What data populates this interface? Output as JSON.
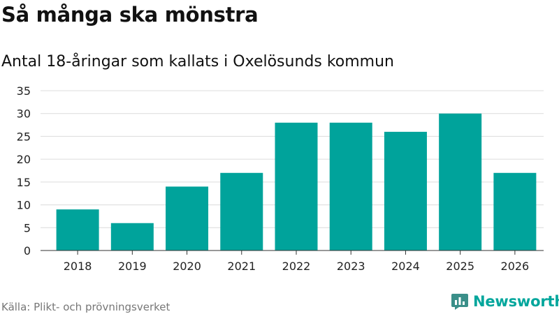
{
  "title": "Så många ska mönstra",
  "subtitle": "Antal 18-åringar som kallats i Oxelösunds kommun",
  "source": "Källa: Plikt- och prövningsverket",
  "brand": {
    "name": "Newsworthy",
    "icon": "newsworthy-logo-icon"
  },
  "colors": {
    "bar": "#00a39b",
    "grid": "#dcdcdc",
    "axis": "#333333",
    "brand": "#00a69c"
  },
  "chart_data": {
    "type": "bar",
    "title": "Så många ska mönstra",
    "subtitle": "Antal 18-åringar som kallats i Oxelösunds kommun",
    "xlabel": "",
    "ylabel": "",
    "categories": [
      "2018",
      "2019",
      "2020",
      "2021",
      "2022",
      "2023",
      "2024",
      "2025",
      "2026"
    ],
    "values": [
      9,
      6,
      14,
      17,
      28,
      28,
      26,
      30,
      17
    ],
    "ylim": [
      0,
      35
    ],
    "yticks": [
      0,
      5,
      10,
      15,
      20,
      25,
      30,
      35
    ],
    "grid": true,
    "legend": "none"
  }
}
